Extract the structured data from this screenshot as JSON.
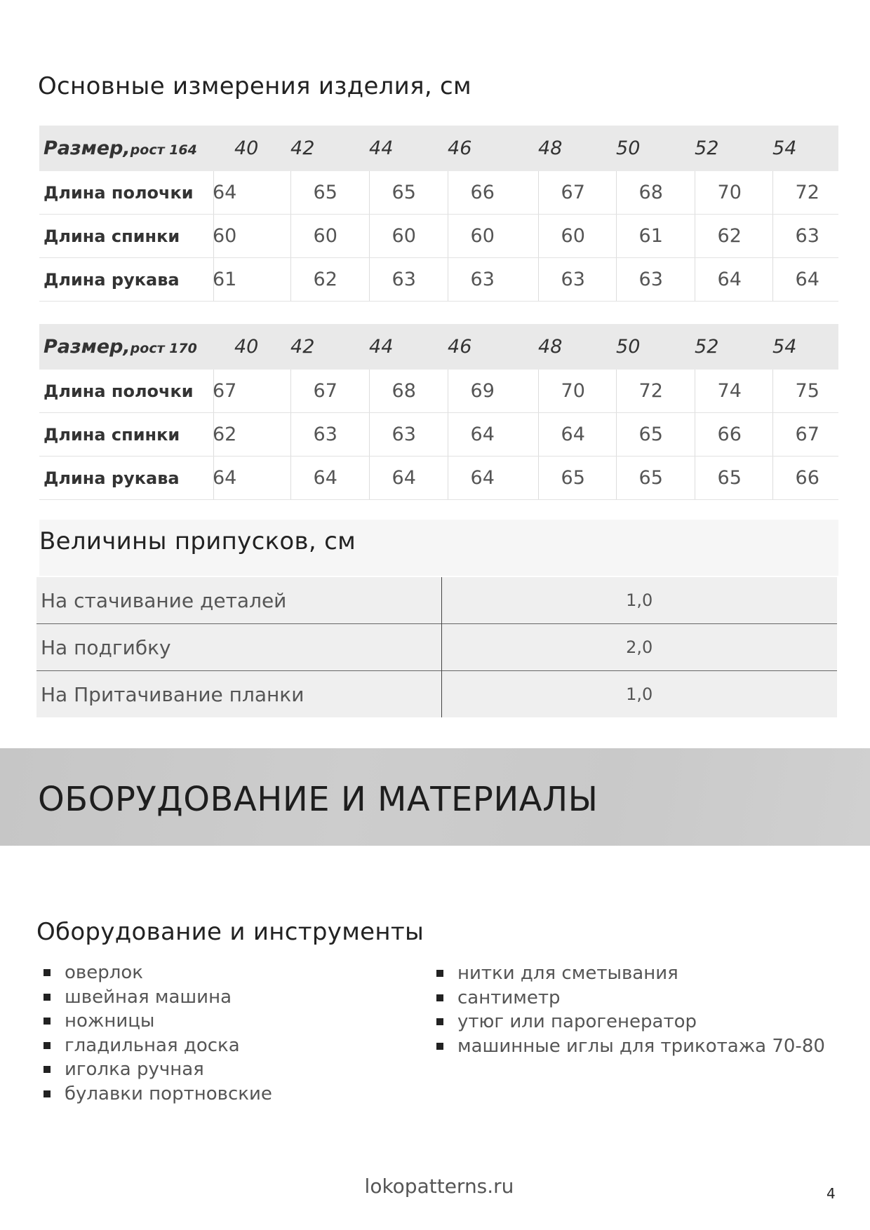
{
  "measurements": {
    "title": "Основные измерения изделия, см",
    "tables": [
      {
        "header_label": "Размер,",
        "header_sub": "рост 164",
        "sizes": [
          "40",
          "42",
          "44",
          "46",
          "48",
          "50",
          "52",
          "54"
        ],
        "rows": [
          {
            "label": "Длина полочки",
            "values": [
              "64",
              "65",
              "65",
              "66",
              "67",
              "68",
              "70",
              "72"
            ]
          },
          {
            "label": "Длина спинки",
            "values": [
              "60",
              "60",
              "60",
              "60",
              "60",
              "61",
              "62",
              "63"
            ]
          },
          {
            "label": "Длина рукава",
            "values": [
              "61",
              "62",
              "63",
              "63",
              "63",
              "63",
              "64",
              "64"
            ]
          }
        ]
      },
      {
        "header_label": "Размер,",
        "header_sub": "рост 170",
        "sizes": [
          "40",
          "42",
          "44",
          "46",
          "48",
          "50",
          "52",
          "54"
        ],
        "rows": [
          {
            "label": "Длина полочки",
            "values": [
              "67",
              "67",
              "68",
              "69",
              "70",
              "72",
              "74",
              "75"
            ]
          },
          {
            "label": "Длина спинки",
            "values": [
              "62",
              "63",
              "63",
              "64",
              "64",
              "65",
              "66",
              "67"
            ]
          },
          {
            "label": "Длина рукава",
            "values": [
              "64",
              "64",
              "64",
              "64",
              "65",
              "65",
              "65",
              "66"
            ]
          }
        ]
      }
    ]
  },
  "allowances": {
    "title": "Величины припусков, см",
    "rows": [
      {
        "label": "На стачивание деталей",
        "value": "1,0"
      },
      {
        "label": "На подгибку",
        "value": "2,0"
      },
      {
        "label": "На Притачивание планки",
        "value": "1,0"
      }
    ]
  },
  "banner": {
    "title": "ОБОРУДОВАНИЕ И МАТЕРИАЛЫ"
  },
  "equipment": {
    "title": "Оборудование и инструменты",
    "left_items": [
      "оверлок",
      "швейная машина",
      "ножницы",
      "гладильная доска",
      "иголка ручная",
      "булавки портновские"
    ],
    "right_items": [
      "нитки для сметывания",
      "сантиметр",
      "утюг или парогенератор",
      "машинные иглы для трикотажа 70-80"
    ]
  },
  "footer": {
    "site": "lokopatterns.ru",
    "page_number": "4"
  }
}
